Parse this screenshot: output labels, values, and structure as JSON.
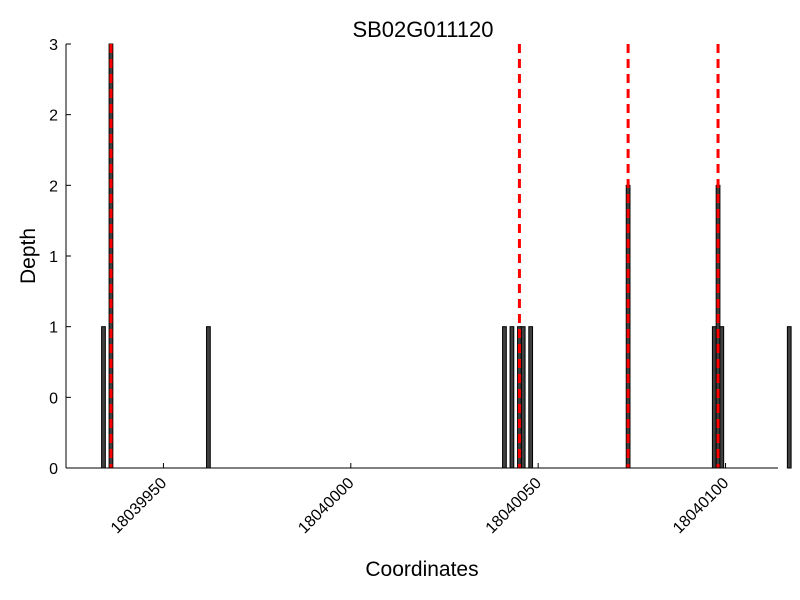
{
  "chart_data": {
    "type": "bar",
    "title": "SB02G011120",
    "xlabel": "Coordinates",
    "ylabel": "Depth",
    "xlim": [
      18039924,
      18040114
    ],
    "ylim": [
      0,
      3
    ],
    "x_ticks": [
      18039950,
      18040000,
      18040050,
      18040100
    ],
    "y_ticks": [
      0,
      0.5,
      1,
      1.5,
      2,
      2.5,
      3
    ],
    "y_tick_labels": [
      "0",
      "0",
      "1",
      "1",
      "2",
      "2",
      "3"
    ],
    "grid": false,
    "bar_color": "#404040",
    "bar_edge_color": "#000000",
    "bars": [
      {
        "x": 18039934,
        "y": 1
      },
      {
        "x": 18039936,
        "y": 3
      },
      {
        "x": 18039962,
        "y": 1
      },
      {
        "x": 18040041,
        "y": 1
      },
      {
        "x": 18040043,
        "y": 1
      },
      {
        "x": 18040045,
        "y": 1
      },
      {
        "x": 18040046,
        "y": 1
      },
      {
        "x": 18040048,
        "y": 1
      },
      {
        "x": 18040074,
        "y": 2
      },
      {
        "x": 18040097,
        "y": 1
      },
      {
        "x": 18040098,
        "y": 2
      },
      {
        "x": 18040099,
        "y": 1
      },
      {
        "x": 18040117,
        "y": 1
      }
    ],
    "vlines": [
      18039936,
      18040045,
      18040074,
      18040098
    ],
    "vline_color": "#ff0000",
    "vline_style": "dashed"
  }
}
